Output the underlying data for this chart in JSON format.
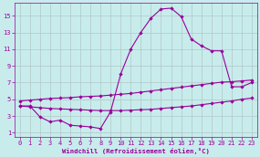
{
  "xlabel": "Windchill (Refroidissement éolien,°C)",
  "bg_color": "#c8ecec",
  "line_color": "#990099",
  "grid_color": "#b0c8c8",
  "xlim": [
    -0.5,
    23.5
  ],
  "ylim": [
    0.5,
    16.5
  ],
  "xticks": [
    0,
    1,
    2,
    3,
    4,
    5,
    6,
    7,
    8,
    9,
    10,
    11,
    12,
    13,
    14,
    15,
    16,
    17,
    18,
    19,
    20,
    21,
    22,
    23
  ],
  "yticks": [
    1,
    3,
    5,
    7,
    9,
    11,
    13,
    15
  ],
  "line1_x": [
    0,
    1,
    2,
    3,
    4,
    5,
    6,
    7,
    8,
    9,
    10,
    11,
    12,
    13,
    14,
    15,
    16,
    17,
    18,
    19,
    20,
    21,
    22,
    23
  ],
  "line1_y": [
    4.2,
    4.2,
    2.9,
    2.3,
    2.5,
    1.9,
    1.8,
    1.7,
    1.5,
    3.5,
    8.0,
    11.0,
    13.0,
    14.7,
    15.8,
    15.9,
    14.9,
    12.2,
    11.4,
    10.8,
    10.8,
    6.5,
    6.5,
    7.0
  ],
  "line2_x": [
    0,
    1,
    2,
    3,
    4,
    5,
    6,
    7,
    8,
    9,
    10,
    11,
    12,
    13,
    14,
    15,
    16,
    17,
    18,
    19,
    20,
    21,
    22,
    23
  ],
  "line2_y": [
    4.8,
    4.9,
    5.0,
    5.1,
    5.15,
    5.2,
    5.3,
    5.35,
    5.4,
    5.5,
    5.6,
    5.7,
    5.85,
    6.0,
    6.15,
    6.3,
    6.45,
    6.6,
    6.75,
    6.9,
    7.05,
    7.1,
    7.2,
    7.3
  ],
  "line3_x": [
    0,
    1,
    2,
    3,
    4,
    5,
    6,
    7,
    8,
    9,
    10,
    11,
    12,
    13,
    14,
    15,
    16,
    17,
    18,
    19,
    20,
    21,
    22,
    23
  ],
  "line3_y": [
    4.2,
    4.1,
    4.0,
    3.9,
    3.85,
    3.8,
    3.75,
    3.7,
    3.65,
    3.65,
    3.65,
    3.7,
    3.75,
    3.8,
    3.9,
    4.0,
    4.1,
    4.2,
    4.35,
    4.5,
    4.65,
    4.8,
    5.0,
    5.15
  ]
}
